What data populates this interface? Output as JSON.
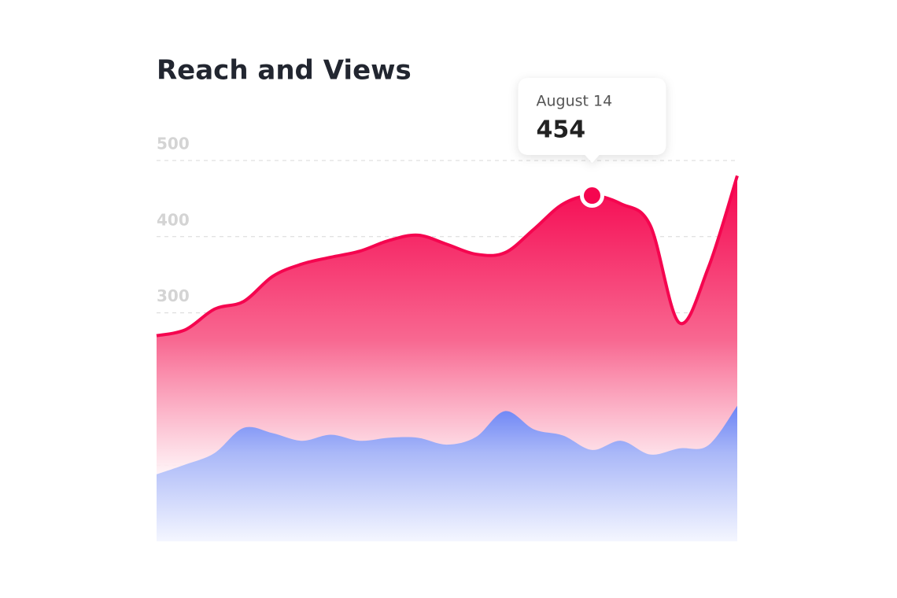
{
  "chart_data": {
    "type": "area",
    "title": "Reach and Views",
    "categories": [
      null,
      null,
      null,
      null,
      null,
      null,
      null,
      null,
      null,
      null,
      null,
      null,
      null,
      null,
      null,
      "August 14",
      null,
      null,
      null,
      null,
      null
    ],
    "series": [
      {
        "color": "#f5054f",
        "values": [
          270,
          278,
          305,
          315,
          348,
          364,
          373,
          381,
          395,
          402,
          390,
          377,
          379,
          410,
          443,
          454,
          443,
          415,
          287,
          359,
          480
        ]
      },
      {
        "color": "#6b83f5",
        "values": [
          88,
          101,
          116,
          149,
          142,
          132,
          140,
          132,
          136,
          136,
          127,
          137,
          171,
          147,
          139,
          120,
          132,
          114,
          122,
          126,
          178
        ]
      }
    ],
    "highlight_index": 15,
    "ylim": [
      0,
      500
    ],
    "yticks": [
      {
        "value": 100,
        "label": null
      },
      {
        "value": 200,
        "label": null
      },
      300,
      400,
      500
    ],
    "grid": true
  }
}
